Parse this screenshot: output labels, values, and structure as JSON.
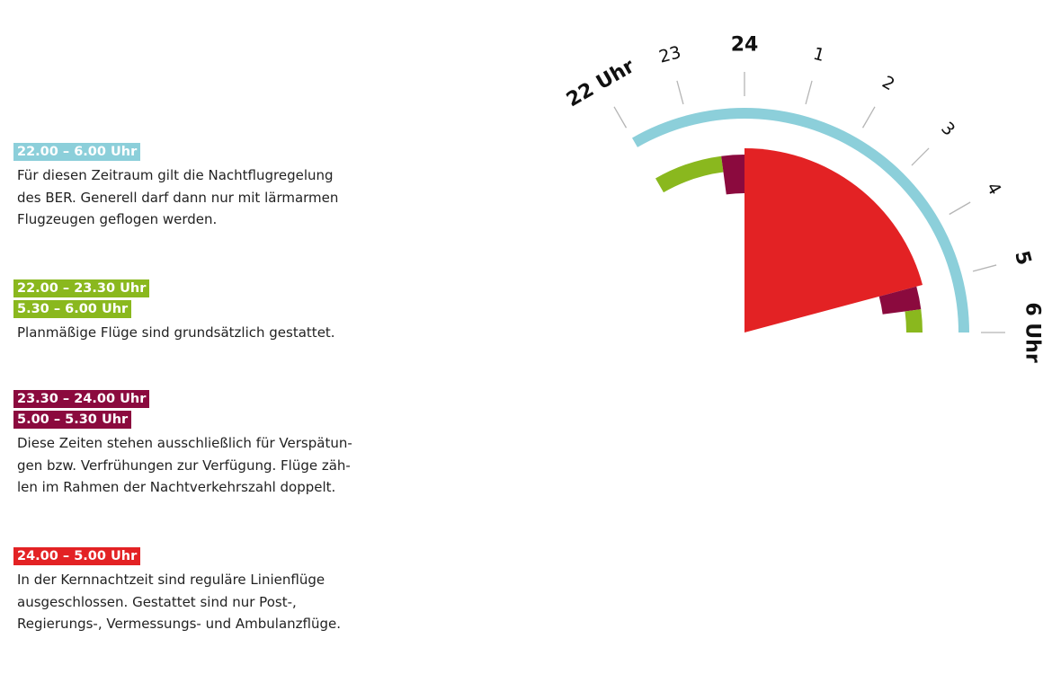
{
  "legend": [
    {
      "tags": [
        {
          "text": "22.00 – 6.00 Uhr",
          "color": "#8ccfda"
        }
      ],
      "text": "Für diesen Zeitraum gilt die Nachtflugregelung\ndes BER. Generell darf dann nur mit lärmarmen\nFlugzeugen geflogen werden."
    },
    {
      "tags": [
        {
          "text": "22.00 – 23.30 Uhr",
          "color": "#8ab81e"
        },
        {
          "text": "5.30 – 6.00 Uhr",
          "color": "#8ab81e"
        }
      ],
      "text": "Planmäßige Flüge sind grundsätzlich gestattet."
    },
    {
      "tags": [
        {
          "text": "23.30 – 24.00 Uhr",
          "color": "#8b0a3e"
        },
        {
          "text": "5.00 – 5.30 Uhr",
          "color": "#8b0a3e"
        }
      ],
      "text": "Diese Zeiten stehen ausschließlich für Verspätun-\ngen bzw. Verfrühungen zur Verfügung. Flüge zäh-\nlen im Rahmen der Nachtverkehrszahl doppelt."
    },
    {
      "tags": [
        {
          "text": "24.00 – 5.00 Uhr",
          "color": "#e32224"
        }
      ],
      "text": "In der Kernnachtzeit sind reguläre Linienflüge\nausgeschlossen. Gestattet sind nur Post-,\nRegierungs-, Vermessungs- und Ambulanzflüge."
    }
  ],
  "clock": {
    "hour_labels": [
      {
        "text": "22 Uhr",
        "hour": 22,
        "major": true
      },
      {
        "text": "23",
        "hour": 23,
        "major": false
      },
      {
        "text": "24",
        "hour": 24,
        "major": true
      },
      {
        "text": "1",
        "hour": 1,
        "major": false
      },
      {
        "text": "2",
        "hour": 2,
        "major": false
      },
      {
        "text": "3",
        "hour": 3,
        "major": false
      },
      {
        "text": "4",
        "hour": 4,
        "major": false
      },
      {
        "text": "5",
        "hour": 5,
        "major": true
      },
      {
        "text": "6 Uhr",
        "hour": 6,
        "major": true
      }
    ],
    "arcs": [
      {
        "name": "Nachtflugregelung",
        "start": 22.0,
        "end": 30.0,
        "ring": "outer",
        "color": "#8ccfda"
      },
      {
        "name": "Planmäßige Flüge",
        "start": 22.0,
        "end": 23.5,
        "ring": "inner",
        "color": "#8ab81e"
      },
      {
        "name": "Verspätungen",
        "start": 23.5,
        "end": 24.0,
        "ring": "band",
        "color": "#8b0a3e"
      },
      {
        "name": "Kernnachtzeit",
        "start": 24.0,
        "end": 29.0,
        "ring": "core",
        "color": "#e32224"
      },
      {
        "name": "Verfrühungen",
        "start": 29.0,
        "end": 29.5,
        "ring": "band",
        "color": "#8b0a3e"
      },
      {
        "name": "Planmäßige Flüge",
        "start": 29.5,
        "end": 30.0,
        "ring": "inner",
        "color": "#8ab81e"
      }
    ]
  }
}
